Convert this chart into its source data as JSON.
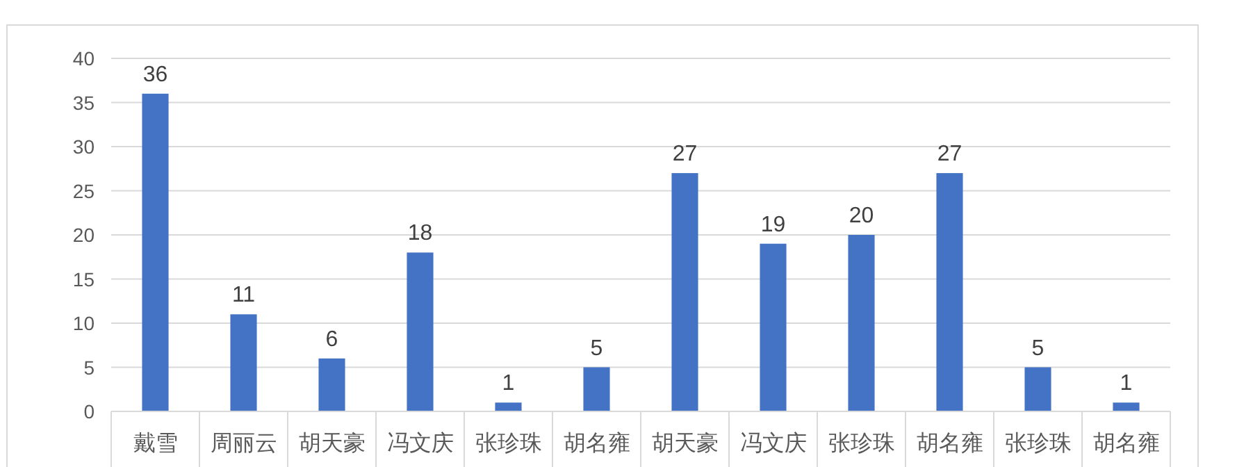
{
  "chart_data": {
    "type": "bar",
    "categories": [
      "戴雪",
      "周丽云",
      "胡天豪",
      "冯文庆",
      "张珍珠",
      "胡名雍",
      "胡天豪",
      "冯文庆",
      "张珍珠",
      "胡名雍",
      "张珍珠",
      "胡名雍"
    ],
    "values": [
      36,
      11,
      6,
      18,
      1,
      5,
      27,
      19,
      20,
      27,
      5,
      1
    ],
    "color": "#4472c4",
    "ylim": [
      0,
      40
    ],
    "yticks": [
      0,
      5,
      10,
      15,
      20,
      25,
      30,
      35,
      40
    ],
    "grid": "y",
    "data_labels": true
  }
}
